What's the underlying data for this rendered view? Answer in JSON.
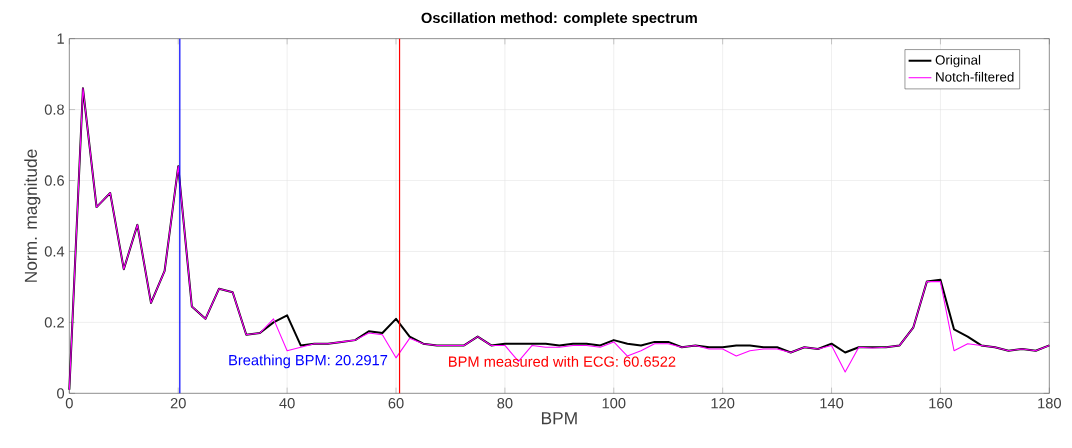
{
  "chart_data": {
    "type": "line",
    "title": "Oscillation method: complete spectrum",
    "xlabel": "BPM",
    "ylabel": "Norm. magnitude",
    "x": [
      0,
      2.5,
      5,
      7.5,
      10,
      12.5,
      15,
      17.5,
      20,
      22.5,
      25,
      27.5,
      30,
      32.5,
      35,
      37.5,
      40,
      42.5,
      45,
      47.5,
      50,
      52.5,
      55,
      57.5,
      60,
      62.5,
      65,
      67.5,
      70,
      72.5,
      75,
      77.5,
      80,
      82.5,
      85,
      87.5,
      90,
      92.5,
      95,
      97.5,
      100,
      102.5,
      105,
      107.5,
      110,
      112.5,
      115,
      117.5,
      120,
      122.5,
      125,
      127.5,
      130,
      132.5,
      135,
      137.5,
      140,
      142.5,
      145,
      147.5,
      150,
      152.5,
      155,
      157.5,
      160,
      162.5,
      165,
      167.5,
      170,
      172.5,
      175,
      177.5,
      180
    ],
    "series": [
      {
        "name": "Original",
        "color": "#000000",
        "values": [
          0.01,
          0.86,
          0.525,
          0.565,
          0.35,
          0.475,
          0.255,
          0.345,
          0.64,
          0.245,
          0.21,
          0.295,
          0.285,
          0.165,
          0.17,
          0.2,
          0.22,
          0.135,
          0.14,
          0.14,
          0.145,
          0.15,
          0.175,
          0.17,
          0.21,
          0.16,
          0.14,
          0.135,
          0.135,
          0.135,
          0.16,
          0.135,
          0.14,
          0.14,
          0.14,
          0.14,
          0.135,
          0.14,
          0.14,
          0.135,
          0.15,
          0.14,
          0.135,
          0.145,
          0.145,
          0.13,
          0.135,
          0.13,
          0.13,
          0.135,
          0.135,
          0.13,
          0.13,
          0.115,
          0.13,
          0.125,
          0.14,
          0.115,
          0.13,
          0.13,
          0.13,
          0.135,
          0.185,
          0.315,
          0.32,
          0.18,
          0.16,
          0.135,
          0.13,
          0.12,
          0.125,
          0.12,
          0.135
        ]
      },
      {
        "name": "Notch-filtered",
        "color": "#ff00ff",
        "values": [
          0.01,
          0.86,
          0.525,
          0.565,
          0.35,
          0.475,
          0.255,
          0.345,
          0.64,
          0.245,
          0.21,
          0.295,
          0.285,
          0.165,
          0.17,
          0.21,
          0.12,
          0.13,
          0.14,
          0.14,
          0.145,
          0.15,
          0.17,
          0.165,
          0.1,
          0.155,
          0.14,
          0.135,
          0.135,
          0.135,
          0.16,
          0.135,
          0.135,
          0.09,
          0.135,
          0.13,
          0.13,
          0.135,
          0.135,
          0.13,
          0.145,
          0.105,
          0.12,
          0.14,
          0.14,
          0.13,
          0.135,
          0.125,
          0.125,
          0.105,
          0.12,
          0.125,
          0.125,
          0.115,
          0.13,
          0.125,
          0.135,
          0.06,
          0.13,
          0.128,
          0.13,
          0.135,
          0.185,
          0.315,
          0.315,
          0.12,
          0.14,
          0.135,
          0.13,
          0.12,
          0.125,
          0.12,
          0.135
        ]
      }
    ],
    "xlim": [
      0,
      180
    ],
    "ylim": [
      0,
      1
    ],
    "xticks": [
      0,
      20,
      40,
      60,
      80,
      100,
      120,
      140,
      160,
      180
    ],
    "yticks": [
      0,
      0.2,
      0.4,
      0.6,
      0.8,
      1
    ],
    "grid": true,
    "legend": "top right",
    "ref_lines": [
      {
        "axis": "x",
        "value": 20.2917,
        "label": "Breathing BPM: 20.2917",
        "color": "#0000ff"
      },
      {
        "axis": "x",
        "value": 60.6522,
        "label": "BPM measured with ECG: 60.6522",
        "color": "#ff0000"
      }
    ]
  }
}
